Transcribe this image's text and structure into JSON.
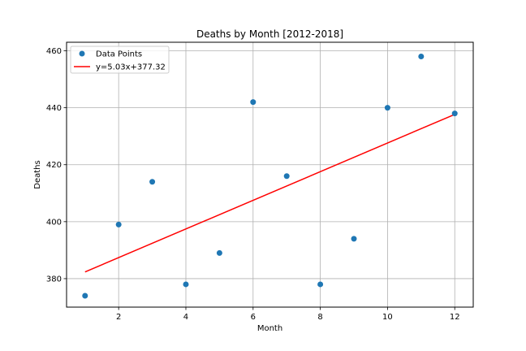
{
  "chart_data": {
    "type": "scatter",
    "title": "Deaths by Month [2012-2018]",
    "xlabel": "Month",
    "ylabel": "Deaths",
    "xlim": [
      0.45,
      12.55
    ],
    "ylim": [
      370,
      463
    ],
    "grid": true,
    "legend_position": "top-left",
    "x_ticks": [
      2,
      4,
      6,
      8,
      10,
      12
    ],
    "y_ticks": [
      380,
      400,
      420,
      440,
      460
    ],
    "series": [
      {
        "name": "Data Points",
        "type": "scatter",
        "color": "#1f77b4",
        "x": [
          1,
          2,
          3,
          4,
          5,
          6,
          7,
          8,
          9,
          10,
          11,
          12
        ],
        "y": [
          374,
          399,
          414,
          378,
          389,
          442,
          416,
          378,
          394,
          440,
          458,
          438
        ]
      },
      {
        "name": "y=5.03x+377.32",
        "type": "line",
        "color": "#ff0000",
        "x": [
          1,
          12
        ],
        "y": [
          382.35,
          437.68
        ]
      }
    ]
  }
}
